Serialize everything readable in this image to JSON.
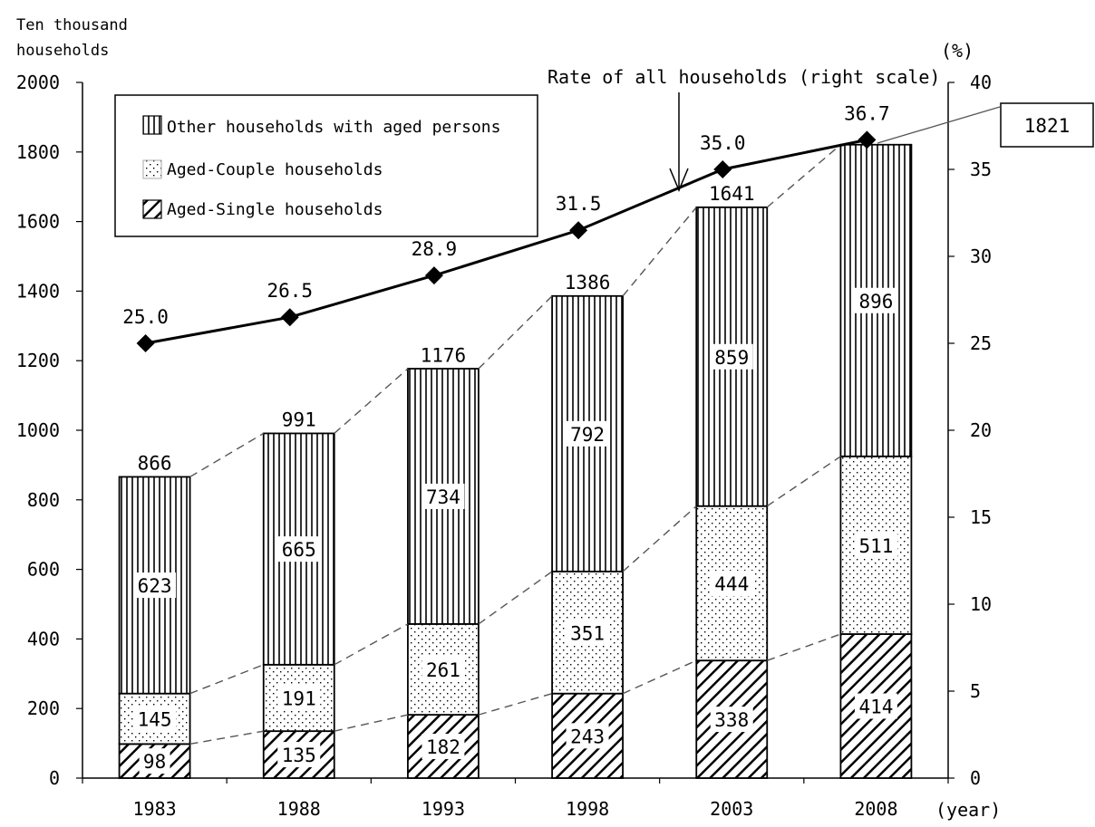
{
  "chart_data": {
    "type": "bar",
    "stacked": true,
    "left_axis_title": [
      "Ten thousand",
      "households"
    ],
    "right_axis_title": "(%)",
    "x_unit": "(year)",
    "categories": [
      "1983",
      "1988",
      "1993",
      "1998",
      "2003",
      "2008"
    ],
    "series": [
      {
        "name": "Aged-Single households",
        "values": [
          98,
          135,
          182,
          243,
          338,
          414
        ],
        "pattern": "diagonal-hatch"
      },
      {
        "name": "Aged-Couple households",
        "values": [
          145,
          191,
          261,
          351,
          444,
          511
        ],
        "pattern": "dots"
      },
      {
        "name": "Other households with aged persons",
        "values": [
          623,
          665,
          734,
          792,
          859,
          896
        ],
        "pattern": "vertical-lines"
      }
    ],
    "totals": [
      866,
      991,
      1176,
      1386,
      1641,
      1821
    ],
    "totals_labels": [
      "866",
      "991",
      "1176",
      "1386",
      "1641",
      "1821"
    ],
    "segment_labels": [
      [
        "98",
        "135",
        "182",
        "243",
        "338",
        "414"
      ],
      [
        "145",
        "191",
        "261",
        "351",
        "444",
        "511"
      ],
      [
        "623",
        "665",
        "734",
        "792",
        "859",
        "896"
      ]
    ],
    "rate_series": {
      "name": "Rate of all households (right scale)",
      "values": [
        25.0,
        26.5,
        28.9,
        31.5,
        35.0,
        36.7
      ],
      "labels": [
        "25.0",
        "26.5",
        "28.9",
        "31.5",
        "35.0",
        "36.7"
      ]
    },
    "ylim_left": [
      0,
      2000
    ],
    "yticks_left": [
      "0",
      "200",
      "400",
      "600",
      "800",
      "1000",
      "1200",
      "1400",
      "1600",
      "1800",
      "2000"
    ],
    "ylim_right": [
      0,
      40
    ],
    "yticks_right": [
      "0",
      "5",
      "10",
      "15",
      "20",
      "25",
      "30",
      "35",
      "40"
    ],
    "legend_position": "top-left",
    "legend_order": [
      2,
      1,
      0
    ]
  }
}
